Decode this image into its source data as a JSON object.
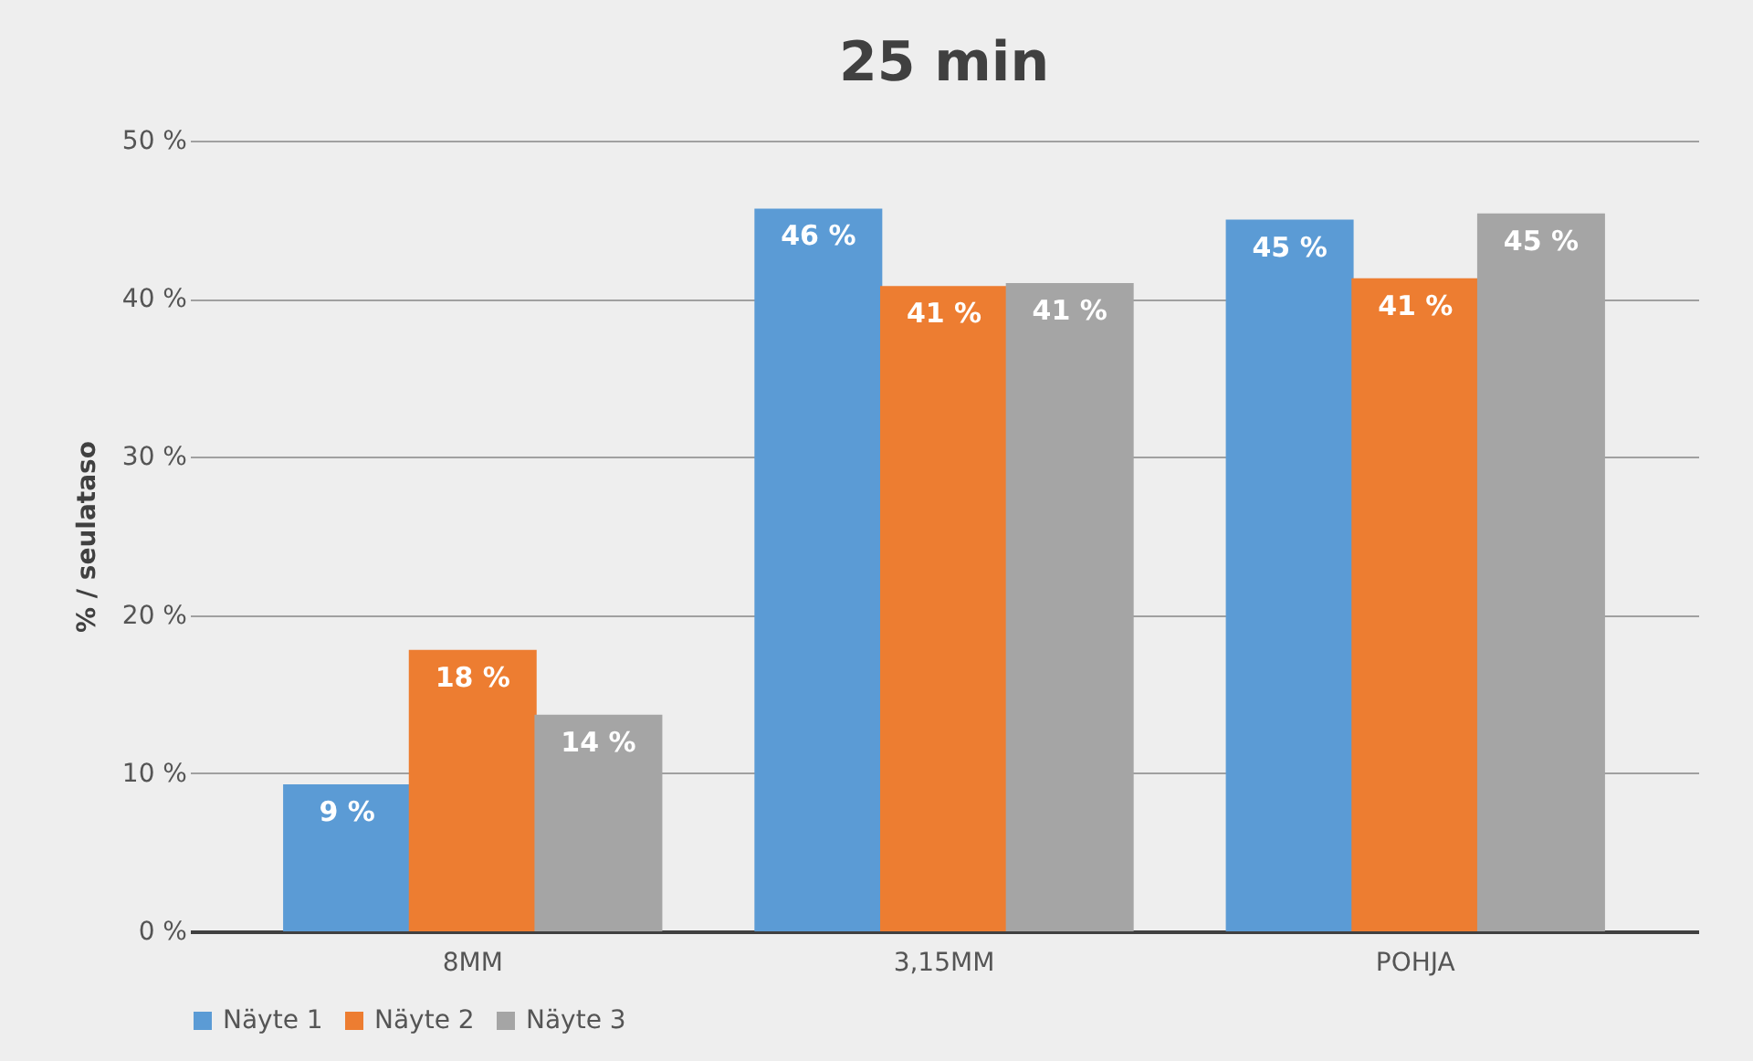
{
  "chart_data": {
    "type": "bar",
    "title": "25 min",
    "ylabel": "% / seulataso",
    "categories": [
      "8MM",
      "3,15MM",
      "POHJA"
    ],
    "series": [
      {
        "name": "Näyte 1",
        "color": "#5b9bd5",
        "values": [
          9.3,
          45.7,
          45.0
        ],
        "value_labels": [
          "9 %",
          "46 %",
          "45 %"
        ]
      },
      {
        "name": "Näyte 2",
        "color": "#ed7d31",
        "values": [
          17.8,
          40.8,
          41.3
        ],
        "value_labels": [
          "18 %",
          "41 %",
          "41 %"
        ]
      },
      {
        "name": "Näyte 3",
        "color": "#a5a5a5",
        "values": [
          13.7,
          41.0,
          45.4
        ],
        "value_labels": [
          "14 %",
          "41 %",
          "45 %"
        ]
      }
    ],
    "ylim": [
      0,
      50
    ],
    "yticks": [
      {
        "value": 0,
        "label": "0 %"
      },
      {
        "value": 10,
        "label": "10 %"
      },
      {
        "value": 20,
        "label": "20 %"
      },
      {
        "value": 30,
        "label": "30 %"
      },
      {
        "value": 40,
        "label": "40 %"
      },
      {
        "value": 50,
        "label": "50 %"
      }
    ],
    "grid": "y",
    "legend": "bottom"
  }
}
